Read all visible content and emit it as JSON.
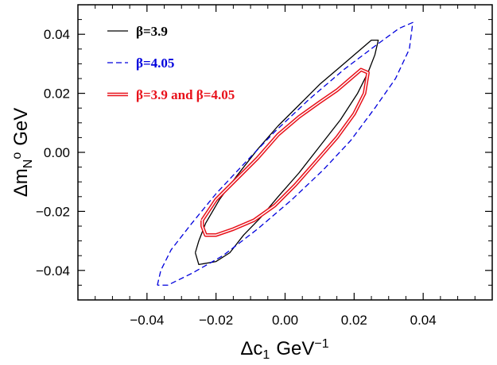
{
  "chart_data": {
    "type": "line",
    "title": "",
    "xlabel": {
      "base": "Δc",
      "sub": "1",
      "unit": "GeV",
      "sup": "−1"
    },
    "ylabel": {
      "base": "Δm",
      "sub": "N",
      "sup": "o",
      "unit": "GeV"
    },
    "xlim": [
      -0.06,
      0.06
    ],
    "ylim": [
      -0.05,
      0.05
    ],
    "xticks": [
      -0.04,
      -0.02,
      0.0,
      0.02,
      0.04
    ],
    "yticks": [
      -0.04,
      -0.02,
      0.0,
      0.02,
      0.04
    ],
    "xtick_labels": [
      "−0.04",
      "−0.02",
      "0.00",
      "0.02",
      "0.04"
    ],
    "ytick_labels": [
      "−0.04",
      "−0.02",
      "0.00",
      "0.02",
      "0.04"
    ],
    "legend_position": "top-left",
    "series": [
      {
        "name": "β=3.9",
        "color": "#000000",
        "style": "solid",
        "points": [
          [
            -0.026,
            -0.034
          ],
          [
            -0.025,
            -0.038
          ],
          [
            -0.02,
            -0.037
          ],
          [
            -0.016,
            -0.034
          ],
          [
            -0.012,
            -0.028
          ],
          [
            -0.007,
            -0.022
          ],
          [
            -0.002,
            -0.015
          ],
          [
            0.004,
            -0.007
          ],
          [
            0.01,
            0.002
          ],
          [
            0.016,
            0.011
          ],
          [
            0.021,
            0.02
          ],
          [
            0.024,
            0.027
          ],
          [
            0.026,
            0.033
          ],
          [
            0.027,
            0.038
          ],
          [
            0.025,
            0.038
          ],
          [
            0.021,
            0.034
          ],
          [
            0.016,
            0.029
          ],
          [
            0.01,
            0.023
          ],
          [
            0.004,
            0.016
          ],
          [
            -0.002,
            0.009
          ],
          [
            -0.008,
            0.001
          ],
          [
            -0.014,
            -0.008
          ],
          [
            -0.019,
            -0.016
          ],
          [
            -0.023,
            -0.024
          ],
          [
            -0.025,
            -0.03
          ],
          [
            -0.026,
            -0.034
          ]
        ]
      },
      {
        "name": "β=4.05",
        "color": "#0000dd",
        "style": "dashed",
        "points": [
          [
            -0.037,
            -0.045
          ],
          [
            -0.036,
            -0.04
          ],
          [
            -0.033,
            -0.033
          ],
          [
            -0.027,
            -0.024
          ],
          [
            -0.02,
            -0.014
          ],
          [
            -0.012,
            -0.004
          ],
          [
            -0.003,
            0.007
          ],
          [
            0.007,
            0.018
          ],
          [
            0.017,
            0.028
          ],
          [
            0.026,
            0.036
          ],
          [
            0.033,
            0.042
          ],
          [
            0.037,
            0.044
          ],
          [
            0.036,
            0.035
          ],
          [
            0.032,
            0.025
          ],
          [
            0.026,
            0.015
          ],
          [
            0.019,
            0.004
          ],
          [
            0.011,
            -0.006
          ],
          [
            0.002,
            -0.016
          ],
          [
            -0.008,
            -0.026
          ],
          [
            -0.018,
            -0.035
          ],
          [
            -0.027,
            -0.041
          ],
          [
            -0.034,
            -0.045
          ],
          [
            -0.037,
            -0.045
          ]
        ]
      },
      {
        "name": "β=3.9 and β=4.05",
        "color": "#e8111a",
        "style": "double",
        "points": [
          [
            -0.024,
            -0.023
          ],
          [
            -0.02,
            -0.016
          ],
          [
            -0.014,
            -0.009
          ],
          [
            -0.008,
            -0.002
          ],
          [
            -0.002,
            0.006
          ],
          [
            0.004,
            0.012
          ],
          [
            0.01,
            0.017
          ],
          [
            0.015,
            0.021
          ],
          [
            0.019,
            0.025
          ],
          [
            0.022,
            0.028
          ],
          [
            0.024,
            0.027
          ],
          [
            0.023,
            0.02
          ],
          [
            0.02,
            0.013
          ],
          [
            0.015,
            0.005
          ],
          [
            0.009,
            -0.003
          ],
          [
            0.003,
            -0.011
          ],
          [
            -0.003,
            -0.018
          ],
          [
            -0.009,
            -0.023
          ],
          [
            -0.015,
            -0.026
          ],
          [
            -0.02,
            -0.028
          ],
          [
            -0.023,
            -0.028
          ],
          [
            -0.024,
            -0.025
          ],
          [
            -0.024,
            -0.023
          ]
        ]
      }
    ]
  }
}
